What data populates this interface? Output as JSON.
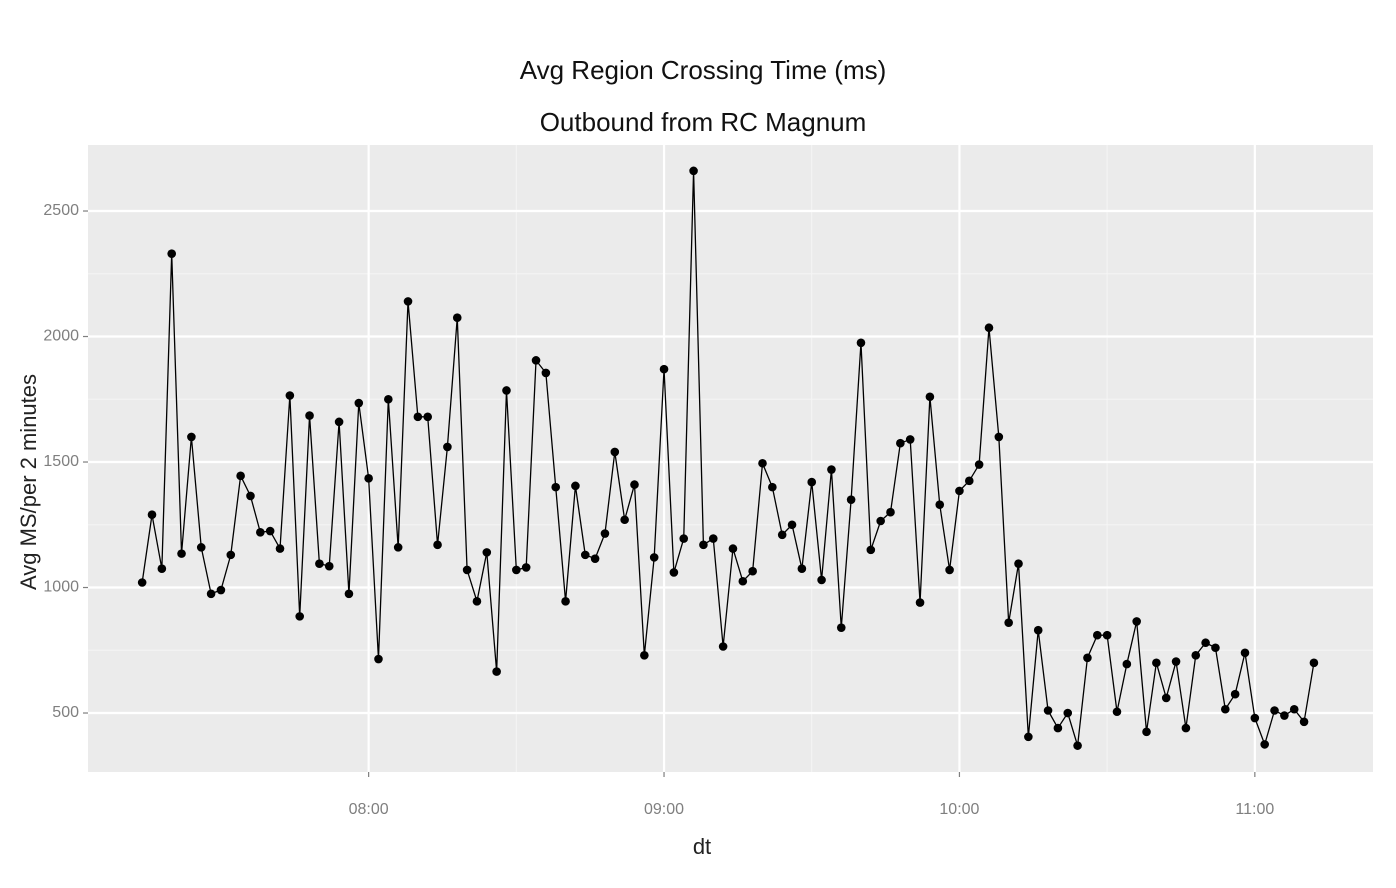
{
  "chart_data": {
    "type": "line",
    "title": "Avg Region Crossing Time (ms)",
    "subtitle": "Outbound from RC Magnum",
    "x_label": "dt",
    "y_label": "Avg MS/per 2 minutes",
    "x": [
      "07:14",
      "07:16",
      "07:18",
      "07:20",
      "07:22",
      "07:24",
      "07:26",
      "07:28",
      "07:30",
      "07:32",
      "07:34",
      "07:36",
      "07:38",
      "07:40",
      "07:42",
      "07:44",
      "07:46",
      "07:48",
      "07:50",
      "07:52",
      "07:54",
      "07:56",
      "07:58",
      "08:00",
      "08:02",
      "08:04",
      "08:06",
      "08:08",
      "08:10",
      "08:12",
      "08:14",
      "08:16",
      "08:18",
      "08:20",
      "08:22",
      "08:24",
      "08:26",
      "08:28",
      "08:30",
      "08:32",
      "08:34",
      "08:36",
      "08:38",
      "08:40",
      "08:42",
      "08:44",
      "08:46",
      "08:48",
      "08:50",
      "08:52",
      "08:54",
      "08:56",
      "08:58",
      "09:00",
      "09:02",
      "09:04",
      "09:06",
      "09:08",
      "09:10",
      "09:12",
      "09:14",
      "09:16",
      "09:18",
      "09:20",
      "09:22",
      "09:24",
      "09:26",
      "09:28",
      "09:30",
      "09:32",
      "09:34",
      "09:36",
      "09:38",
      "09:40",
      "09:42",
      "09:44",
      "09:46",
      "09:48",
      "09:50",
      "09:52",
      "09:54",
      "09:56",
      "09:58",
      "10:00",
      "10:02",
      "10:04",
      "10:06",
      "10:08",
      "10:10",
      "10:12",
      "10:14",
      "10:16",
      "10:18",
      "10:20",
      "10:22",
      "10:24",
      "10:26",
      "10:28",
      "10:30",
      "10:32",
      "10:34",
      "10:36",
      "10:38",
      "10:40",
      "10:42",
      "10:44",
      "10:46",
      "10:48",
      "10:50",
      "10:52",
      "10:54",
      "10:56",
      "10:58",
      "11:00",
      "11:02",
      "11:04",
      "11:06",
      "11:08",
      "11:10",
      "11:12"
    ],
    "series": [
      {
        "name": "Avg MS",
        "color": "#000000",
        "values": [
          1020,
          1290,
          1075,
          2330,
          1135,
          1600,
          1160,
          975,
          990,
          1130,
          1445,
          1365,
          1220,
          1225,
          1155,
          1765,
          885,
          1685,
          1095,
          1085,
          1660,
          975,
          1735,
          1435,
          715,
          1750,
          1160,
          2140,
          1680,
          1680,
          1170,
          1560,
          2075,
          1070,
          945,
          1140,
          665,
          1785,
          1070,
          1080,
          1905,
          1855,
          1400,
          945,
          1405,
          1130,
          1115,
          1215,
          1540,
          1270,
          1410,
          730,
          1120,
          1870,
          1060,
          1195,
          2660,
          1170,
          1195,
          765,
          1155,
          1025,
          1065,
          1495,
          1400,
          1210,
          1250,
          1075,
          1420,
          1030,
          1470,
          840,
          1350,
          1975,
          1150,
          1265,
          1300,
          1575,
          1590,
          940,
          1760,
          1330,
          1070,
          1385,
          1425,
          1490,
          2035,
          1600,
          860,
          1095,
          405,
          830,
          510,
          440,
          500,
          370,
          720,
          810,
          810,
          505,
          695,
          865,
          425,
          700,
          560,
          705,
          440,
          730,
          780,
          760,
          515,
          575,
          740,
          480,
          375,
          510,
          490,
          515,
          465,
          700
        ]
      }
    ],
    "xlim": [
      "07:03",
      "11:24"
    ],
    "xticks": [
      "08:00",
      "09:00",
      "10:00",
      "11:00"
    ],
    "ylim": [
      265,
      2763
    ],
    "yticks": [
      500,
      1000,
      1500,
      2000,
      2500
    ],
    "grid": true,
    "panel_color": "#ebebeb"
  }
}
